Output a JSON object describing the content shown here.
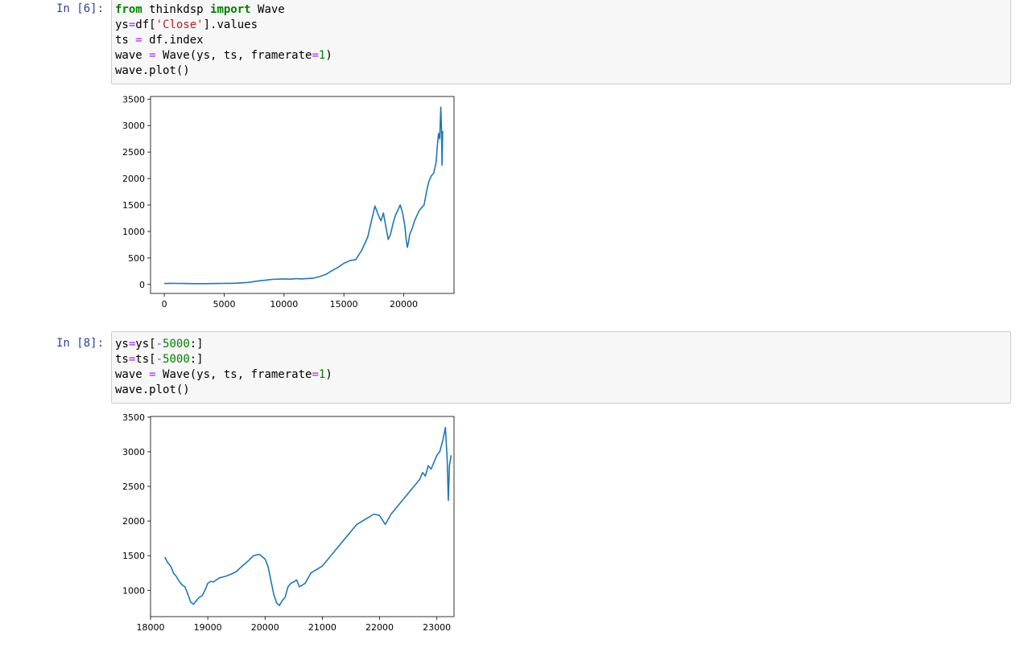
{
  "cells": [
    {
      "prompt": "In [6]:",
      "code": [
        [
          [
            "from",
            "kw"
          ],
          [
            " thinkdsp ",
            ""
          ],
          [
            "import",
            "kw"
          ],
          [
            " Wave",
            ""
          ]
        ],
        [
          [
            "ys",
            ""
          ],
          [
            "=",
            "op"
          ],
          [
            "df[",
            ""
          ],
          [
            "'Close'",
            "str"
          ],
          [
            "].values",
            ""
          ]
        ],
        [
          [
            "ts ",
            ""
          ],
          [
            "=",
            "op"
          ],
          [
            " df.index",
            ""
          ]
        ],
        [
          [
            "wave ",
            ""
          ],
          [
            "=",
            "op"
          ],
          [
            " Wave(ys, ts, framerate",
            ""
          ],
          [
            "=",
            "op"
          ],
          [
            "1",
            "num"
          ],
          [
            ")",
            ""
          ]
        ],
        [
          [
            "wave.plot()",
            ""
          ]
        ]
      ]
    },
    {
      "prompt": "In [8]:",
      "code": [
        [
          [
            "ys",
            ""
          ],
          [
            "=",
            "op"
          ],
          [
            "ys[",
            ""
          ],
          [
            "-",
            "op"
          ],
          [
            "5000",
            "num"
          ],
          [
            ":]",
            ""
          ]
        ],
        [
          [
            "ts",
            ""
          ],
          [
            "=",
            "op"
          ],
          [
            "ts[",
            ""
          ],
          [
            "-",
            "op"
          ],
          [
            "5000",
            "num"
          ],
          [
            ":]",
            ""
          ]
        ],
        [
          [
            "wave ",
            ""
          ],
          [
            "=",
            "op"
          ],
          [
            " Wave(ys, ts, framerate",
            ""
          ],
          [
            "=",
            "op"
          ],
          [
            "1",
            "num"
          ],
          [
            ")",
            ""
          ]
        ],
        [
          [
            "wave.plot()",
            ""
          ]
        ]
      ]
    }
  ],
  "chart_data": [
    {
      "type": "line",
      "title": "",
      "xlabel": "",
      "ylabel": "",
      "xlim": [
        -1150,
        24200
      ],
      "ylim": [
        -170,
        3550
      ],
      "xticks": [
        0,
        5000,
        10000,
        15000,
        20000
      ],
      "yticks": [
        0,
        500,
        1000,
        1500,
        2000,
        2500,
        3000,
        3500
      ],
      "grid": false,
      "color": "#1f77b4",
      "series": [
        {
          "x": [
            0,
            500,
            1000,
            1500,
            2000,
            2500,
            3000,
            3500,
            4000,
            4500,
            5000,
            5500,
            6000,
            6500,
            7000,
            7500,
            8000,
            8500,
            9000,
            9500,
            10000,
            10500,
            11000,
            11500,
            12000,
            12500,
            13000,
            13500,
            14000,
            14500,
            15000,
            15500,
            16000,
            16500,
            17000,
            17300,
            17600,
            17900,
            18100,
            18300,
            18500,
            18700,
            18900,
            19100,
            19300,
            19500,
            19700,
            19900,
            20100,
            20200,
            20300,
            20400,
            20500,
            20700,
            20900,
            21100,
            21300,
            21500,
            21700,
            21900,
            22100,
            22300,
            22500,
            22700,
            22800,
            22900,
            23000,
            23050,
            23100,
            23150,
            23200,
            23250
          ],
          "y": [
            17,
            22,
            20,
            18,
            17,
            16,
            15,
            16,
            17,
            19,
            20,
            22,
            25,
            30,
            38,
            55,
            70,
            82,
            95,
            100,
            105,
            98,
            110,
            105,
            112,
            120,
            150,
            190,
            260,
            320,
            400,
            450,
            470,
            650,
            900,
            1200,
            1480,
            1300,
            1200,
            1350,
            1100,
            850,
            950,
            1150,
            1300,
            1400,
            1500,
            1350,
            1100,
            850,
            700,
            800,
            950,
            1050,
            1200,
            1300,
            1400,
            1450,
            1500,
            1750,
            1950,
            2050,
            2100,
            2300,
            2600,
            2850,
            2750,
            3050,
            3350,
            2950,
            2250,
            2900
          ]
        }
      ]
    },
    {
      "type": "line",
      "title": "",
      "xlabel": "",
      "ylabel": "",
      "xlim": [
        18000,
        23300
      ],
      "ylim": [
        620,
        3510
      ],
      "xticks": [
        18000,
        19000,
        20000,
        21000,
        22000,
        23000
      ],
      "yticks": [
        1000,
        1500,
        2000,
        2500,
        3000,
        3500
      ],
      "grid": false,
      "color": "#1f77b4",
      "series": [
        {
          "x": [
            18250,
            18300,
            18350,
            18400,
            18450,
            18500,
            18550,
            18600,
            18650,
            18700,
            18750,
            18800,
            18850,
            18900,
            18950,
            19000,
            19050,
            19100,
            19200,
            19300,
            19400,
            19500,
            19600,
            19700,
            19800,
            19900,
            20000,
            20050,
            20100,
            20150,
            20200,
            20250,
            20300,
            20350,
            20400,
            20450,
            20500,
            20550,
            20600,
            20700,
            20800,
            20900,
            21000,
            21100,
            21200,
            21300,
            21400,
            21500,
            21600,
            21700,
            21800,
            21900,
            22000,
            22100,
            22200,
            22300,
            22400,
            22500,
            22600,
            22700,
            22750,
            22800,
            22850,
            22900,
            22950,
            23000,
            23050,
            23100,
            23150,
            23180,
            23200,
            23220,
            23250
          ],
          "y": [
            1480,
            1400,
            1350,
            1250,
            1200,
            1130,
            1080,
            1050,
            950,
            830,
            800,
            850,
            900,
            920,
            1000,
            1100,
            1130,
            1120,
            1180,
            1200,
            1230,
            1270,
            1350,
            1420,
            1500,
            1520,
            1450,
            1350,
            1150,
            950,
            820,
            780,
            850,
            900,
            1050,
            1100,
            1120,
            1150,
            1050,
            1100,
            1250,
            1300,
            1350,
            1450,
            1550,
            1650,
            1750,
            1850,
            1950,
            2000,
            2050,
            2100,
            2080,
            1950,
            2100,
            2200,
            2300,
            2400,
            2500,
            2600,
            2700,
            2650,
            2800,
            2750,
            2850,
            2950,
            3000,
            3150,
            3350,
            2900,
            2300,
            2800,
            2950
          ]
        }
      ]
    }
  ]
}
